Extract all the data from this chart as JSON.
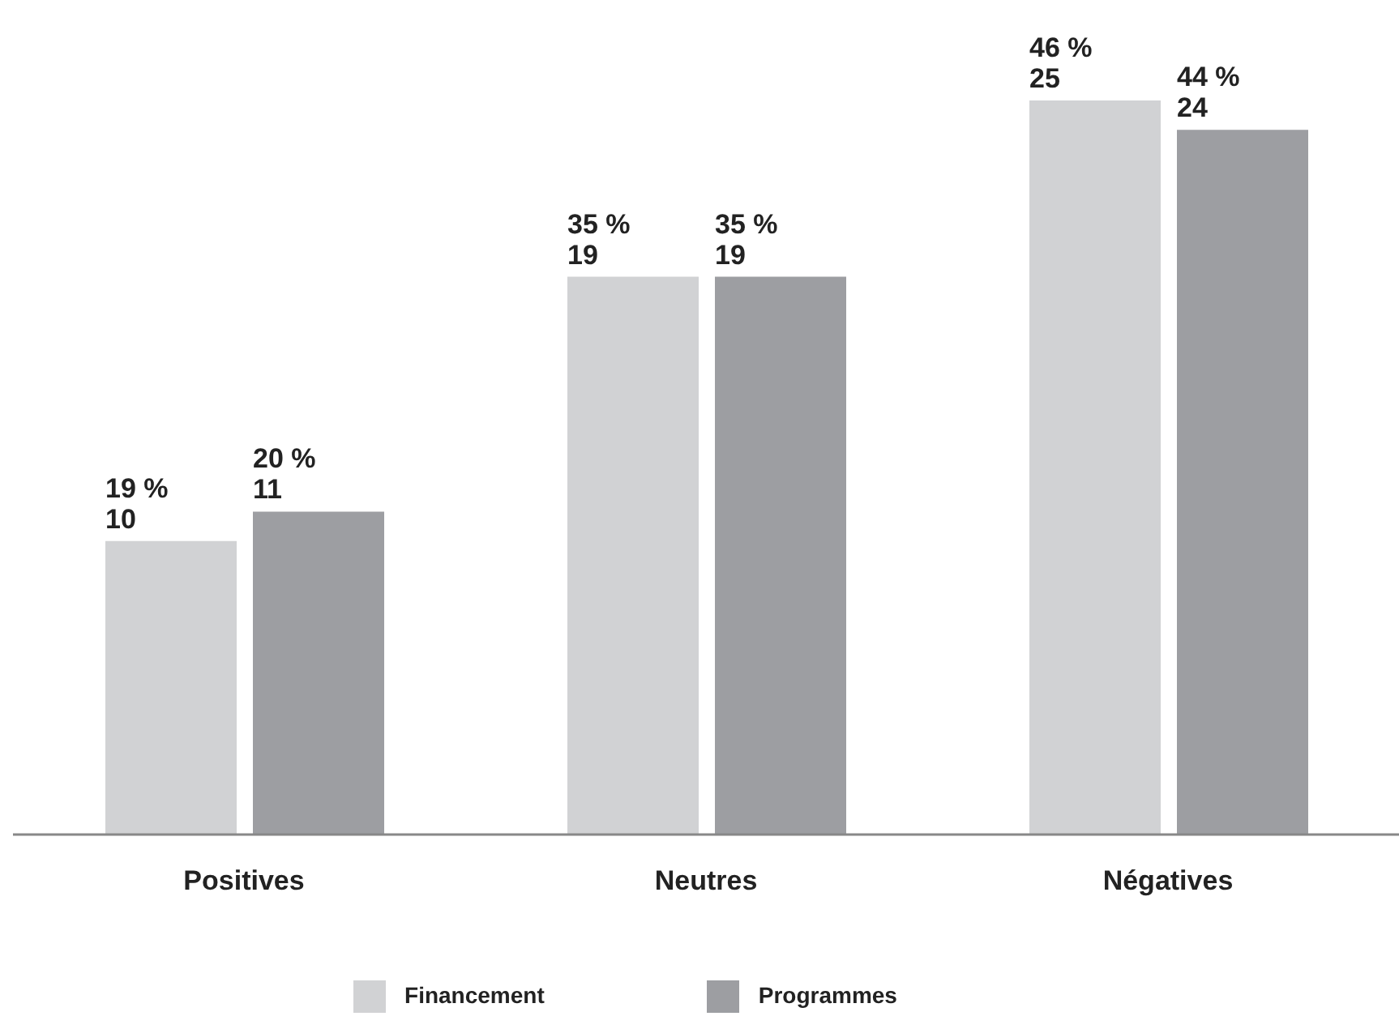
{
  "chart_data": {
    "type": "bar",
    "categories": [
      "Positives",
      "Neutres",
      "Négatives"
    ],
    "series": [
      {
        "name": "Financement",
        "color": "#d1d2d4",
        "values": [
          10,
          19,
          25
        ],
        "value_labels": [
          "19 %\n10",
          "35 %\n19",
          "46 %\n25"
        ]
      },
      {
        "name": "Programmes",
        "color": "#9d9ea2",
        "values": [
          11,
          19,
          24
        ],
        "value_labels": [
          "20 %\n11",
          "35 %\n19",
          "44 %\n24"
        ]
      }
    ],
    "relative": false,
    "legend": "bottom",
    "grid": false
  }
}
